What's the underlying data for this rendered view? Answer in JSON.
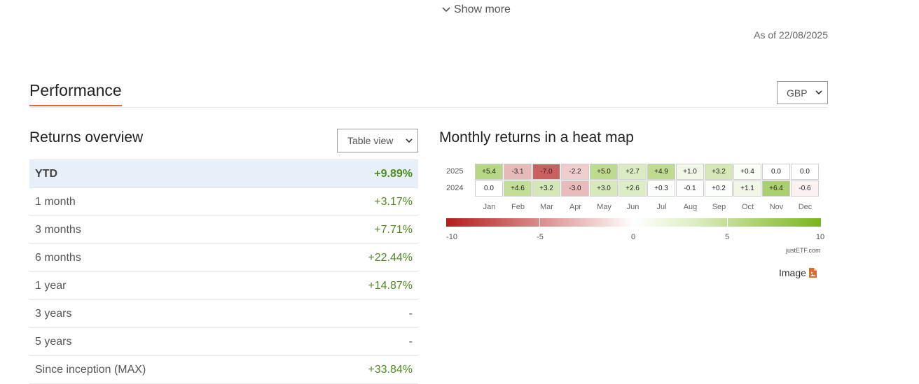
{
  "show_more": "Show more",
  "as_of": "As of 22/08/2025",
  "performance": {
    "title": "Performance",
    "currency": "GBP"
  },
  "returns_overview": {
    "title": "Returns overview",
    "view_select": "Table view",
    "rows": [
      {
        "label": "YTD",
        "value": "+9.89%"
      },
      {
        "label": "1 month",
        "value": "+3.17%"
      },
      {
        "label": "3 months",
        "value": "+7.71%"
      },
      {
        "label": "6 months",
        "value": "+22.44%"
      },
      {
        "label": "1 year",
        "value": "+14.87%"
      },
      {
        "label": "3 years",
        "value": "-"
      },
      {
        "label": "5 years",
        "value": "-"
      },
      {
        "label": "Since inception (MAX)",
        "value": "+33.84%"
      }
    ]
  },
  "heatmap": {
    "title": "Monthly returns in a heat map",
    "months": [
      "Jan",
      "Feb",
      "Mar",
      "Apr",
      "May",
      "Jun",
      "Jul",
      "Aug",
      "Sep",
      "Oct",
      "Nov",
      "Dec"
    ],
    "years": [
      {
        "year": "2025",
        "values": [
          "+5.4",
          "-3.1",
          "-7.0",
          "-2.2",
          "+5.0",
          "+2.7",
          "+4.9",
          "+1.0",
          "+3.2",
          "+0.4",
          "0.0",
          "0.0"
        ]
      },
      {
        "year": "2024",
        "values": [
          "0.0",
          "+4.6",
          "+3.2",
          "-3.0",
          "+3.0",
          "+2.6",
          "+0.3",
          "-0.1",
          "+0.2",
          "+1.1",
          "+6.4",
          "-0.6"
        ]
      }
    ],
    "scale_labels": [
      "-10",
      "-5",
      "0",
      "5",
      "10"
    ],
    "scale_range": [
      -10,
      10
    ],
    "colors": {
      "negative": "#b51c1c",
      "neutral": "#ffffff",
      "positive": "#7ab51b"
    },
    "source": "justETF.com",
    "image_link": "Image",
    "image_icon": "image-file-icon"
  },
  "colors": {
    "accent": "#e0692c",
    "positive_text": "#4d8a1f",
    "highlight_row": "#e7f0f7"
  }
}
